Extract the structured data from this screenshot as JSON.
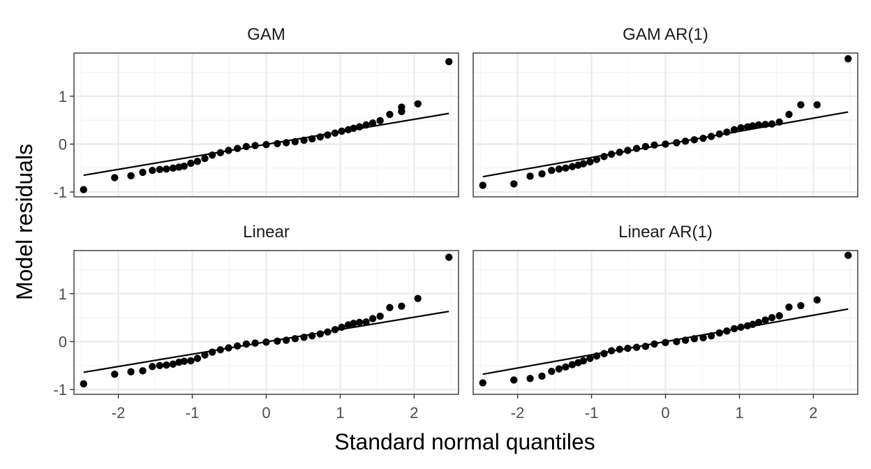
{
  "chart_data": {
    "type": "scatter",
    "xlabel": "Standard normal quantiles",
    "ylabel": "Model residuals",
    "xlim": [
      -2.6,
      2.6
    ],
    "ylim": [
      -1.1,
      1.9
    ],
    "x_ticks": [
      -2,
      -1,
      0,
      1,
      2
    ],
    "y_ticks": [
      -1,
      0,
      1
    ],
    "x_tick_labels": [
      "-2",
      "-1",
      "0",
      "1",
      "2"
    ],
    "y_tick_labels": [
      "-1",
      "0",
      "1"
    ],
    "grid": true,
    "point_color": "#000000",
    "panels": [
      {
        "title": "GAM",
        "reference_line": [
          [
            -2.47,
            -0.65
          ],
          [
            2.47,
            0.64
          ]
        ],
        "points": [
          [
            -2.47,
            -0.95
          ],
          [
            -2.05,
            -0.7
          ],
          [
            -1.83,
            -0.66
          ],
          [
            -1.67,
            -0.59
          ],
          [
            -1.54,
            -0.55
          ],
          [
            -1.44,
            -0.53
          ],
          [
            -1.35,
            -0.52
          ],
          [
            -1.26,
            -0.5
          ],
          [
            -1.18,
            -0.48
          ],
          [
            -1.11,
            -0.46
          ],
          [
            -1.02,
            -0.4
          ],
          [
            -0.93,
            -0.36
          ],
          [
            -0.83,
            -0.3
          ],
          [
            -0.73,
            -0.23
          ],
          [
            -0.62,
            -0.18
          ],
          [
            -0.51,
            -0.13
          ],
          [
            -0.39,
            -0.09
          ],
          [
            -0.27,
            -0.05
          ],
          [
            -0.15,
            -0.03
          ],
          [
            0.0,
            -0.01
          ],
          [
            0.15,
            0.01
          ],
          [
            0.27,
            0.03
          ],
          [
            0.39,
            0.05
          ],
          [
            0.51,
            0.08
          ],
          [
            0.62,
            0.11
          ],
          [
            0.73,
            0.15
          ],
          [
            0.83,
            0.19
          ],
          [
            0.93,
            0.23
          ],
          [
            1.02,
            0.27
          ],
          [
            1.11,
            0.3
          ],
          [
            1.18,
            0.33
          ],
          [
            1.26,
            0.36
          ],
          [
            1.35,
            0.4
          ],
          [
            1.44,
            0.44
          ],
          [
            1.54,
            0.49
          ],
          [
            1.67,
            0.62
          ],
          [
            1.83,
            0.68
          ],
          [
            1.83,
            0.77
          ],
          [
            2.05,
            0.84
          ],
          [
            2.47,
            1.72
          ]
        ]
      },
      {
        "title": "GAM AR(1)",
        "reference_line": [
          [
            -2.47,
            -0.68
          ],
          [
            2.47,
            0.67
          ]
        ],
        "points": [
          [
            -2.47,
            -0.86
          ],
          [
            -2.05,
            -0.83
          ],
          [
            -1.83,
            -0.67
          ],
          [
            -1.67,
            -0.62
          ],
          [
            -1.54,
            -0.55
          ],
          [
            -1.44,
            -0.52
          ],
          [
            -1.35,
            -0.5
          ],
          [
            -1.26,
            -0.47
          ],
          [
            -1.18,
            -0.44
          ],
          [
            -1.11,
            -0.41
          ],
          [
            -1.02,
            -0.37
          ],
          [
            -0.93,
            -0.32
          ],
          [
            -0.83,
            -0.26
          ],
          [
            -0.73,
            -0.21
          ],
          [
            -0.62,
            -0.17
          ],
          [
            -0.51,
            -0.13
          ],
          [
            -0.39,
            -0.09
          ],
          [
            -0.27,
            -0.05
          ],
          [
            -0.15,
            -0.02
          ],
          [
            0.0,
            0.0
          ],
          [
            0.15,
            0.03
          ],
          [
            0.27,
            0.06
          ],
          [
            0.39,
            0.09
          ],
          [
            0.51,
            0.12
          ],
          [
            0.62,
            0.16
          ],
          [
            0.73,
            0.21
          ],
          [
            0.83,
            0.25
          ],
          [
            0.93,
            0.3
          ],
          [
            1.02,
            0.34
          ],
          [
            1.11,
            0.36
          ],
          [
            1.18,
            0.38
          ],
          [
            1.26,
            0.4
          ],
          [
            1.35,
            0.41
          ],
          [
            1.44,
            0.42
          ],
          [
            1.54,
            0.46
          ],
          [
            1.67,
            0.62
          ],
          [
            1.83,
            0.82
          ],
          [
            2.05,
            0.82
          ],
          [
            2.47,
            1.78
          ]
        ]
      },
      {
        "title": "Linear",
        "reference_line": [
          [
            -2.47,
            -0.64
          ],
          [
            2.47,
            0.63
          ]
        ],
        "points": [
          [
            -2.47,
            -0.88
          ],
          [
            -2.05,
            -0.68
          ],
          [
            -1.83,
            -0.63
          ],
          [
            -1.67,
            -0.61
          ],
          [
            -1.54,
            -0.52
          ],
          [
            -1.44,
            -0.5
          ],
          [
            -1.35,
            -0.49
          ],
          [
            -1.26,
            -0.47
          ],
          [
            -1.18,
            -0.43
          ],
          [
            -1.11,
            -0.41
          ],
          [
            -1.02,
            -0.4
          ],
          [
            -0.93,
            -0.35
          ],
          [
            -0.83,
            -0.28
          ],
          [
            -0.73,
            -0.22
          ],
          [
            -0.62,
            -0.17
          ],
          [
            -0.51,
            -0.13
          ],
          [
            -0.39,
            -0.09
          ],
          [
            -0.27,
            -0.05
          ],
          [
            -0.15,
            -0.03
          ],
          [
            0.0,
            -0.01
          ],
          [
            0.15,
            0.01
          ],
          [
            0.27,
            0.03
          ],
          [
            0.39,
            0.06
          ],
          [
            0.51,
            0.09
          ],
          [
            0.62,
            0.12
          ],
          [
            0.73,
            0.16
          ],
          [
            0.83,
            0.2
          ],
          [
            0.93,
            0.25
          ],
          [
            1.02,
            0.3
          ],
          [
            1.11,
            0.35
          ],
          [
            1.18,
            0.38
          ],
          [
            1.26,
            0.4
          ],
          [
            1.35,
            0.41
          ],
          [
            1.44,
            0.48
          ],
          [
            1.54,
            0.53
          ],
          [
            1.67,
            0.71
          ],
          [
            1.83,
            0.74
          ],
          [
            2.05,
            0.9
          ],
          [
            2.47,
            1.76
          ]
        ]
      },
      {
        "title": "Linear AR(1)",
        "reference_line": [
          [
            -2.47,
            -0.68
          ],
          [
            2.47,
            0.68
          ]
        ],
        "points": [
          [
            -2.47,
            -0.86
          ],
          [
            -2.05,
            -0.8
          ],
          [
            -1.83,
            -0.77
          ],
          [
            -1.67,
            -0.72
          ],
          [
            -1.54,
            -0.62
          ],
          [
            -1.44,
            -0.57
          ],
          [
            -1.35,
            -0.53
          ],
          [
            -1.26,
            -0.48
          ],
          [
            -1.18,
            -0.44
          ],
          [
            -1.11,
            -0.4
          ],
          [
            -1.02,
            -0.35
          ],
          [
            -0.93,
            -0.3
          ],
          [
            -0.83,
            -0.25
          ],
          [
            -0.73,
            -0.19
          ],
          [
            -0.62,
            -0.16
          ],
          [
            -0.51,
            -0.14
          ],
          [
            -0.39,
            -0.12
          ],
          [
            -0.27,
            -0.1
          ],
          [
            -0.15,
            -0.05
          ],
          [
            0.0,
            -0.02
          ],
          [
            0.15,
            0.0
          ],
          [
            0.27,
            0.03
          ],
          [
            0.39,
            0.06
          ],
          [
            0.51,
            0.08
          ],
          [
            0.62,
            0.12
          ],
          [
            0.73,
            0.18
          ],
          [
            0.83,
            0.22
          ],
          [
            0.93,
            0.27
          ],
          [
            1.02,
            0.3
          ],
          [
            1.11,
            0.33
          ],
          [
            1.18,
            0.36
          ],
          [
            1.26,
            0.4
          ],
          [
            1.35,
            0.45
          ],
          [
            1.44,
            0.5
          ],
          [
            1.54,
            0.54
          ],
          [
            1.67,
            0.72
          ],
          [
            1.83,
            0.75
          ],
          [
            2.05,
            0.87
          ],
          [
            2.47,
            1.8
          ]
        ]
      }
    ]
  }
}
